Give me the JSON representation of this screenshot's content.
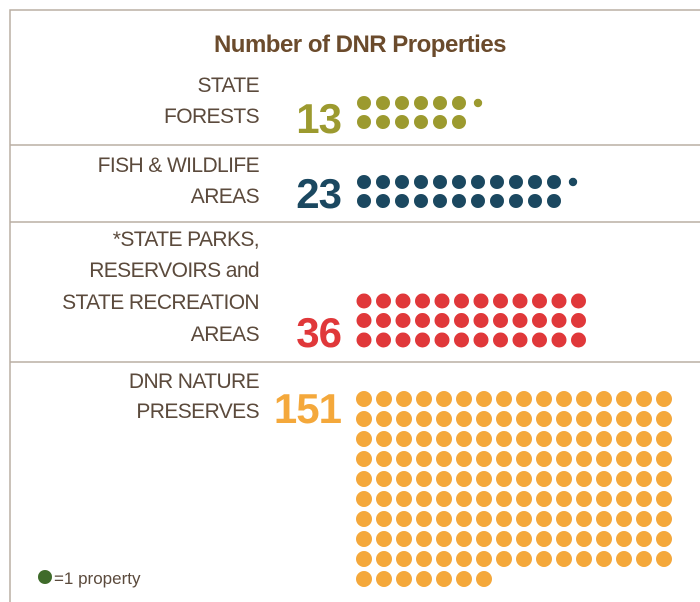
{
  "chart_data": {
    "type": "pictogram",
    "title": "Number of DNR Properties",
    "categories": [
      [
        "STATE",
        "FORESTS"
      ],
      [
        "FISH & WILDLIFE",
        "AREAS"
      ],
      [
        "*STATE PARKS,",
        "RESERVOIRS and",
        "STATE RECREATION",
        "AREAS"
      ],
      [
        "DNR NATURE",
        "PRESERVES"
      ]
    ],
    "values": [
      13,
      23,
      36,
      151
    ],
    "colors": [
      "#9c9a2f",
      "#1b4860",
      "#e0383a",
      "#f4a83b"
    ],
    "legend": {
      "color": "#3f6b2a",
      "label": "=1 property"
    }
  }
}
